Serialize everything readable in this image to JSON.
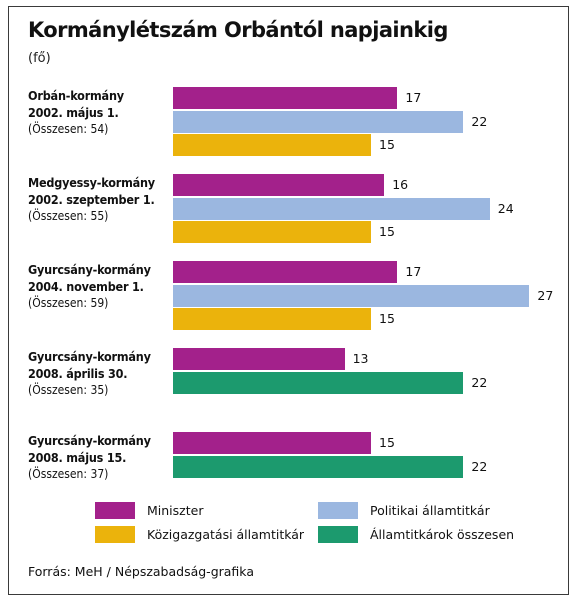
{
  "chart_data": {
    "type": "bar",
    "orientation": "horizontal",
    "title": "Kormánylétszám Orbántól napjainkig",
    "unit": "(fő)",
    "source": "Forrás: MeH / Népszabadság-grafika",
    "series": [
      {
        "key": "miniszter",
        "name": "Miniszter",
        "color": "#a3218b"
      },
      {
        "key": "politikai",
        "name": "Politikai államtitkár",
        "color": "#9bb7e0"
      },
      {
        "key": "kozigazgatasi",
        "name": "Közigazgatási államtitkár",
        "color": "#ebb30c"
      },
      {
        "key": "osszesen",
        "name": "Államtitkárok összesen",
        "color": "#1c9a6e"
      }
    ],
    "groups": [
      {
        "name": "Orbán-kormány",
        "date": "2002. május 1.",
        "total": "(Összesen: 54)",
        "bars": [
          {
            "series": "miniszter",
            "value": 17
          },
          {
            "series": "politikai",
            "value": 22
          },
          {
            "series": "kozigazgatasi",
            "value": 15
          }
        ]
      },
      {
        "name": "Medgyessy-kormány",
        "date": "2002. szeptember 1.",
        "total": "(Összesen: 55)",
        "bars": [
          {
            "series": "miniszter",
            "value": 16
          },
          {
            "series": "politikai",
            "value": 24
          },
          {
            "series": "kozigazgatasi",
            "value": 15
          }
        ]
      },
      {
        "name": "Gyurcsány-kormány",
        "date": "2004. november 1.",
        "total": "(Összesen: 59)",
        "bars": [
          {
            "series": "miniszter",
            "value": 17
          },
          {
            "series": "politikai",
            "value": 27
          },
          {
            "series": "kozigazgatasi",
            "value": 15
          }
        ]
      },
      {
        "name": "Gyurcsány-kormány",
        "date": "2008. április 30.",
        "total": "(Összesen: 35)",
        "bars": [
          {
            "series": "miniszter",
            "value": 13
          },
          {
            "series": "osszesen",
            "value": 22
          }
        ]
      },
      {
        "name": "Gyurcsány-kormány",
        "date": "2008. május 15.",
        "total": "(Összesen: 37)",
        "bars": [
          {
            "series": "miniszter",
            "value": 15
          },
          {
            "series": "osszesen",
            "value": 22
          }
        ]
      }
    ],
    "xlim": [
      0,
      27
    ],
    "grid": false,
    "legend": "bottom"
  }
}
